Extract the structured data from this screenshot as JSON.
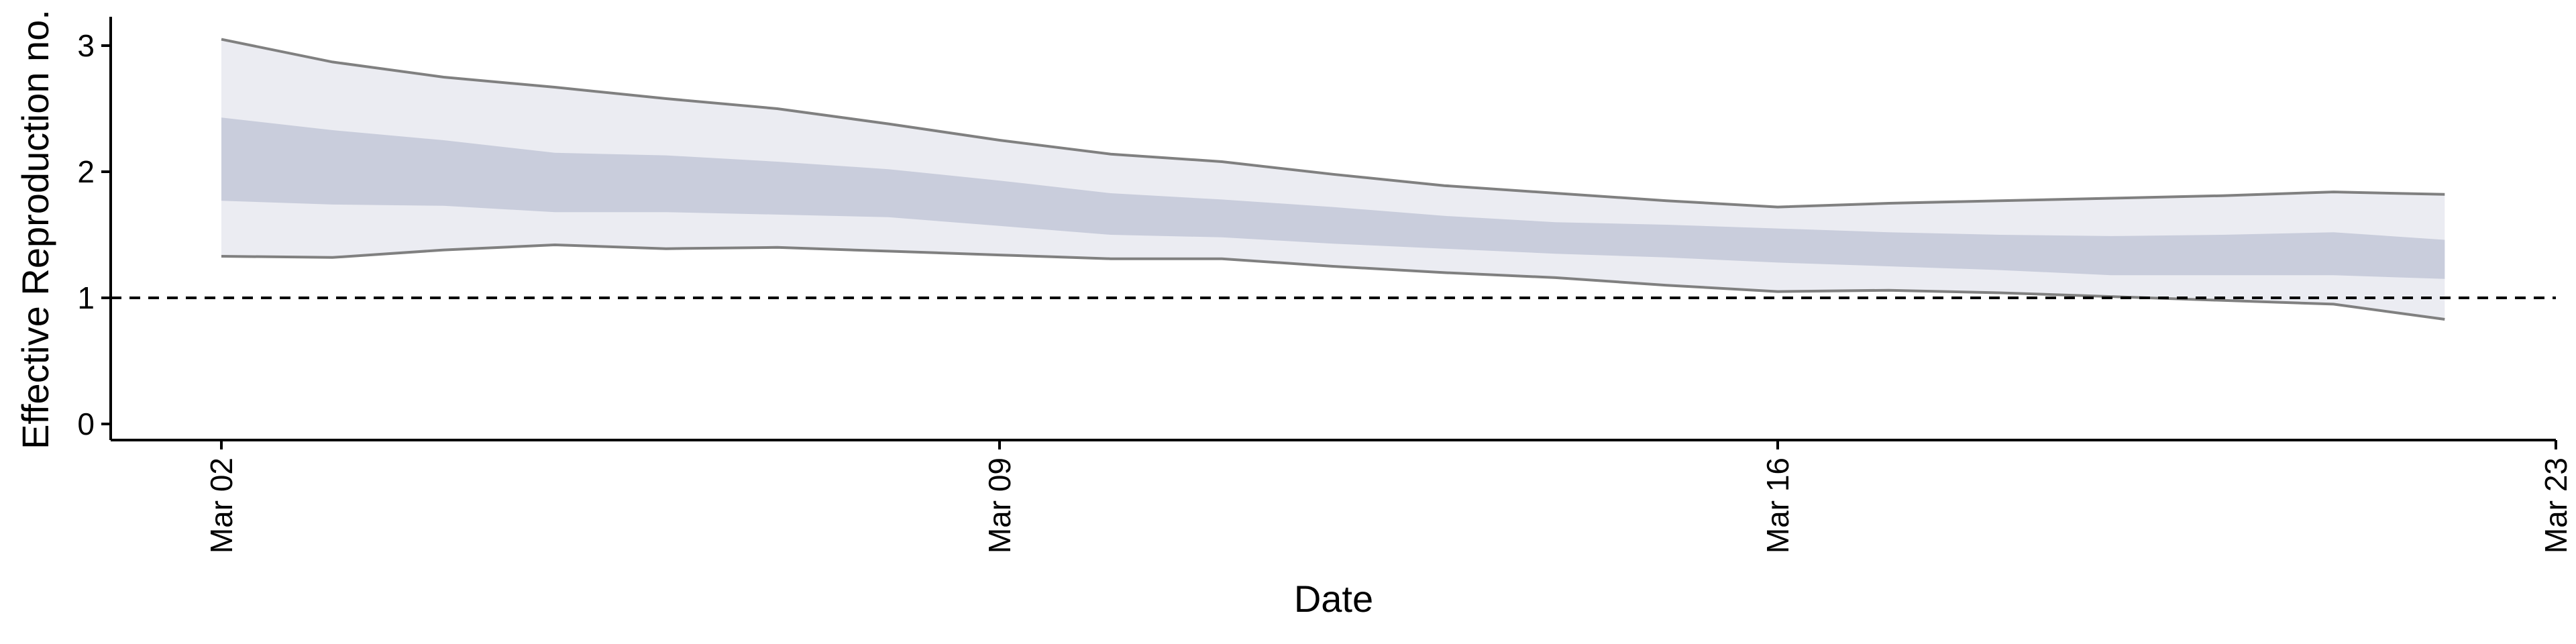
{
  "chart_data": {
    "type": "area",
    "xlabel": "Date",
    "ylabel": "Effective Reproduction no.",
    "x_ticks": [
      {
        "label": "Mar 02",
        "day": 0
      },
      {
        "label": "Mar 09",
        "day": 7
      },
      {
        "label": "Mar 16",
        "day": 14
      },
      {
        "label": "Mar 23",
        "day": 21
      }
    ],
    "y_ticks": [
      0,
      1,
      2,
      3
    ],
    "xlim": [
      "2020-03-01",
      "2020-03-23"
    ],
    "ylim": [
      -0.1,
      3.2
    ],
    "reference_line": {
      "y": 1,
      "style": "dashed"
    },
    "colors": {
      "outer_band": "#ebecf2",
      "inner_band": "#c9cddc",
      "band_edge": "#808080",
      "reference": "#000000",
      "axis": "#000000"
    },
    "series": [
      {
        "x": [
          "2020-03-02",
          "2020-03-03",
          "2020-03-04",
          "2020-03-05",
          "2020-03-06",
          "2020-03-07",
          "2020-03-08",
          "2020-03-09",
          "2020-03-10",
          "2020-03-11",
          "2020-03-12",
          "2020-03-13",
          "2020-03-14",
          "2020-03-15",
          "2020-03-16",
          "2020-03-17",
          "2020-03-18",
          "2020-03-19",
          "2020-03-20",
          "2020-03-21",
          "2020-03-22"
        ],
        "outer_upper": [
          3.05,
          2.87,
          2.75,
          2.67,
          2.58,
          2.5,
          2.38,
          2.25,
          2.14,
          2.08,
          1.98,
          1.89,
          1.83,
          1.77,
          1.72,
          1.75,
          1.77,
          1.79,
          1.81,
          1.84,
          1.82
        ],
        "inner_upper": [
          2.43,
          2.33,
          2.25,
          2.15,
          2.13,
          2.08,
          2.02,
          1.93,
          1.83,
          1.78,
          1.72,
          1.65,
          1.6,
          1.58,
          1.55,
          1.52,
          1.5,
          1.49,
          1.5,
          1.52,
          1.46
        ],
        "inner_lower": [
          1.77,
          1.74,
          1.73,
          1.68,
          1.68,
          1.66,
          1.64,
          1.57,
          1.5,
          1.48,
          1.43,
          1.39,
          1.35,
          1.32,
          1.28,
          1.25,
          1.22,
          1.18,
          1.18,
          1.18,
          1.15
        ],
        "outer_lower": [
          1.33,
          1.32,
          1.38,
          1.42,
          1.39,
          1.4,
          1.37,
          1.34,
          1.31,
          1.31,
          1.25,
          1.2,
          1.16,
          1.1,
          1.05,
          1.06,
          1.04,
          1.01,
          0.98,
          0.95,
          0.83
        ]
      }
    ]
  }
}
